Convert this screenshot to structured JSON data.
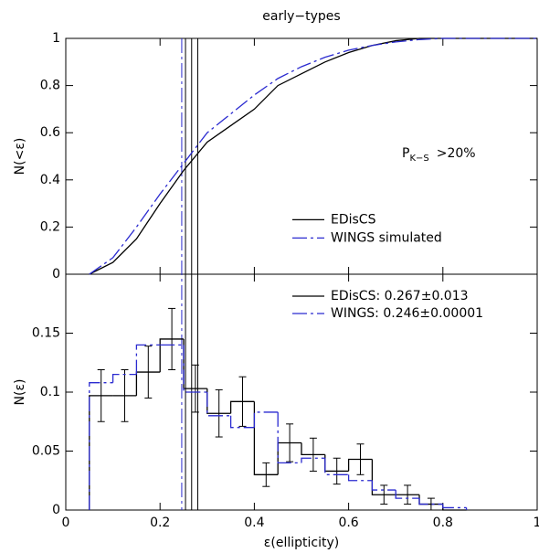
{
  "chart_data": [
    {
      "type": "line",
      "title": "early−types",
      "ylabel": "N(<ε)",
      "xlim": [
        0,
        1
      ],
      "ylim": [
        0,
        1
      ],
      "yticks": [
        0,
        0.2,
        0.4,
        0.6,
        0.8,
        1
      ],
      "annotation": {
        "main": "P",
        "sub": "K−S",
        "tail": ">20%"
      },
      "series": [
        {
          "name": "EDisCS",
          "color": "#000000",
          "linestyle": "solid",
          "x": [
            0.05,
            0.1,
            0.15,
            0.2,
            0.25,
            0.3,
            0.35,
            0.4,
            0.45,
            0.5,
            0.55,
            0.6,
            0.65,
            0.7,
            0.75,
            1
          ],
          "values": [
            0,
            0.05,
            0.15,
            0.3,
            0.44,
            0.56,
            0.63,
            0.7,
            0.8,
            0.85,
            0.9,
            0.94,
            0.97,
            0.99,
            1,
            1
          ]
        },
        {
          "name": "WINGS simulated",
          "color": "#2a2ad0",
          "linestyle": "dashdot",
          "x": [
            0.05,
            0.1,
            0.15,
            0.2,
            0.25,
            0.3,
            0.35,
            0.4,
            0.45,
            0.5,
            0.55,
            0.6,
            0.65,
            0.7,
            0.75,
            0.8,
            1
          ],
          "values": [
            0,
            0.07,
            0.2,
            0.34,
            0.47,
            0.6,
            0.68,
            0.76,
            0.83,
            0.88,
            0.92,
            0.95,
            0.97,
            0.985,
            0.995,
            1,
            1
          ]
        }
      ]
    },
    {
      "type": "histogram",
      "xlabel": "ε(ellipticity)",
      "ylabel": "N(ε)",
      "xlim": [
        0,
        1
      ],
      "ylim": [
        0,
        0.2
      ],
      "xticks": [
        0,
        0.2,
        0.4,
        0.6,
        0.8,
        1
      ],
      "yticks": [
        0,
        0.05,
        0.1,
        0.15
      ],
      "bins": [
        0.05,
        0.1,
        0.15,
        0.2,
        0.25,
        0.3,
        0.35,
        0.4,
        0.45,
        0.5,
        0.55,
        0.6,
        0.65,
        0.7,
        0.75,
        0.8,
        0.85
      ],
      "series": [
        {
          "name": "EDisCS: 0.267±0.013",
          "color": "#000000",
          "linestyle": "solid",
          "mean": 0.267,
          "mean_error": 0.013,
          "values": [
            0.097,
            0.097,
            0.117,
            0.145,
            0.103,
            0.082,
            0.092,
            0.03,
            0.057,
            0.047,
            0.033,
            0.043,
            0.013,
            0.013,
            0.005,
            0
          ],
          "errors": [
            0.022,
            0.022,
            0.022,
            0.026,
            0.02,
            0.02,
            0.021,
            0.01,
            0.016,
            0.014,
            0.011,
            0.013,
            0.008,
            0.008,
            0.005,
            0
          ]
        },
        {
          "name": "WINGS: 0.246±0.00001",
          "color": "#2a2ad0",
          "linestyle": "dashdot",
          "mean": 0.246,
          "values": [
            0.108,
            0.115,
            0.14,
            0.14,
            0.1,
            0.08,
            0.07,
            0.083,
            0.04,
            0.044,
            0.03,
            0.025,
            0.017,
            0.01,
            0.005,
            0.002
          ]
        }
      ]
    }
  ]
}
